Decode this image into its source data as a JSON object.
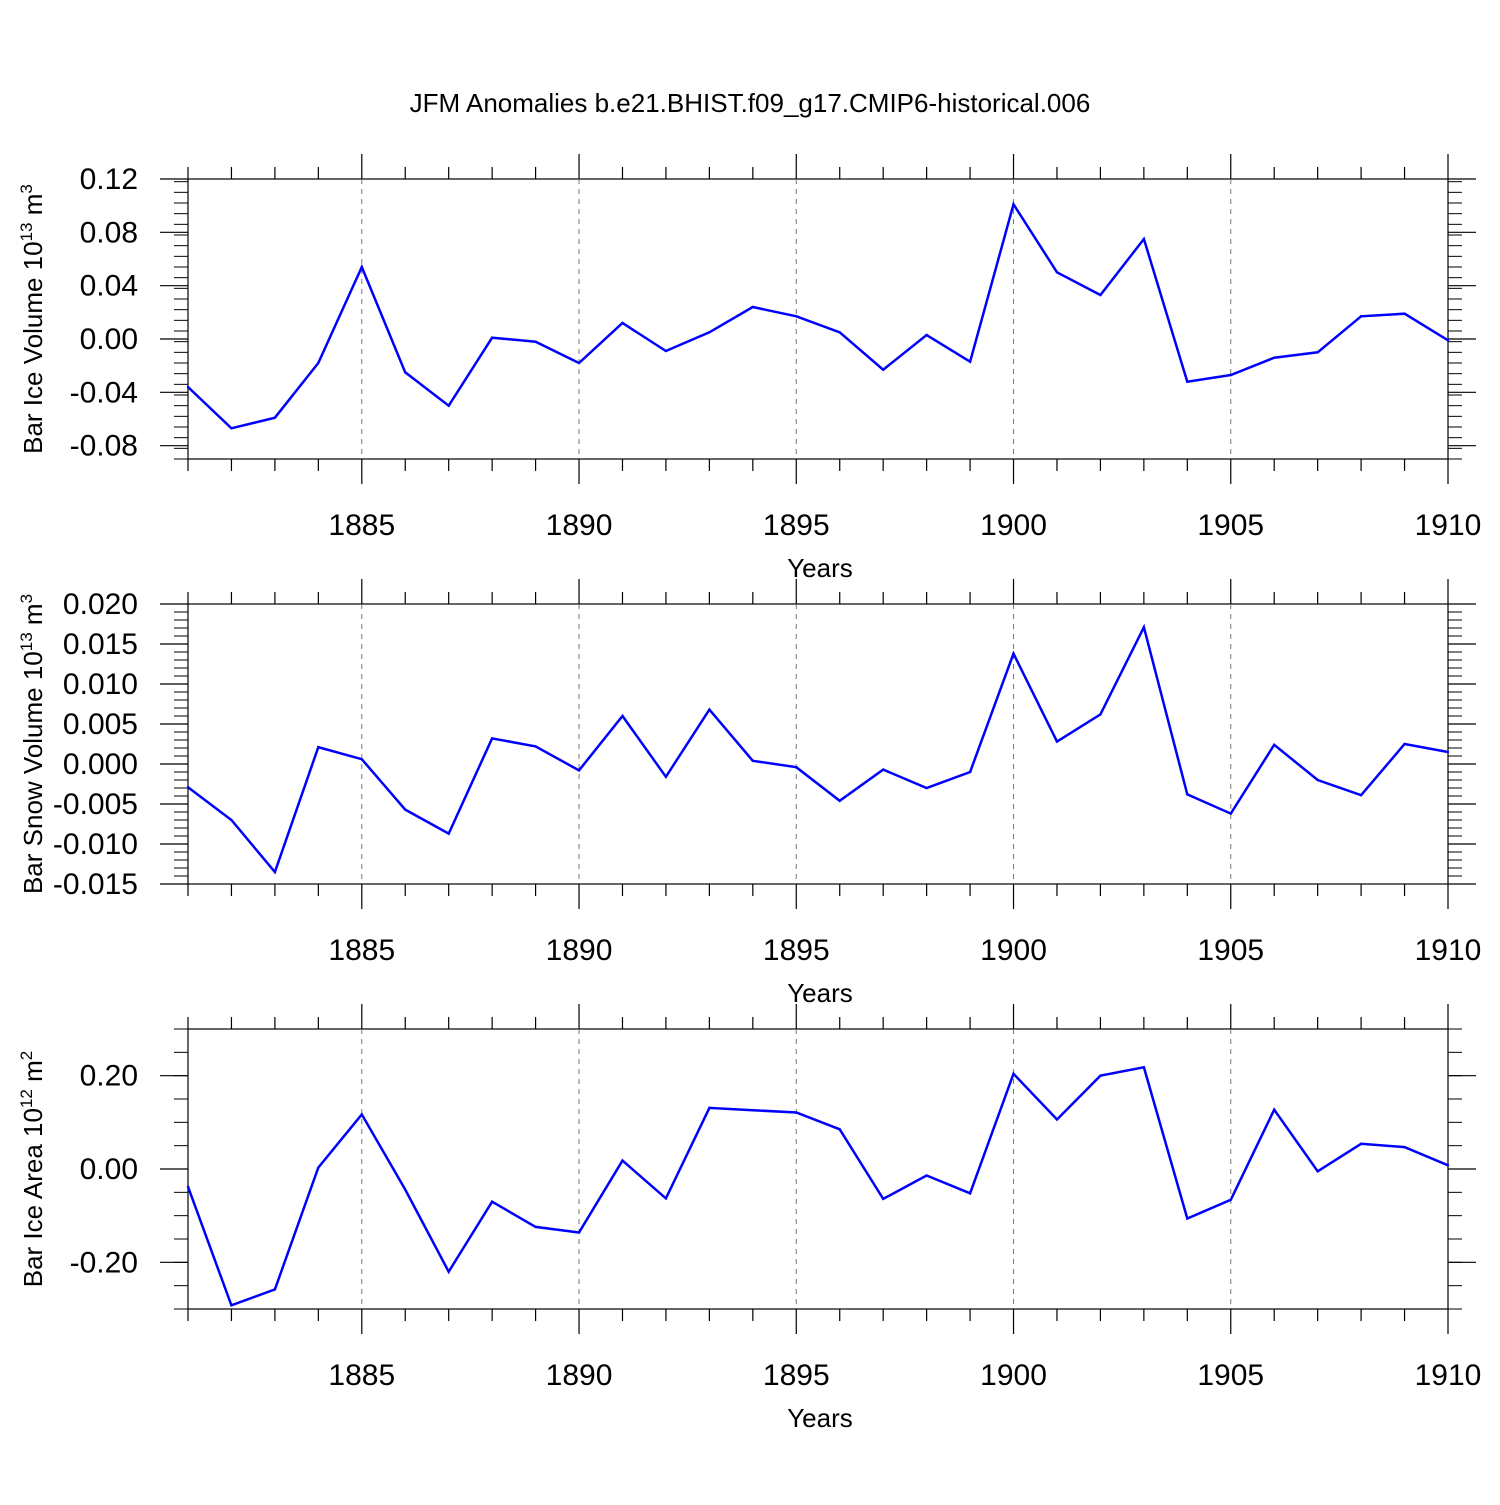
{
  "title": "JFM Anomalies b.e21.BHIST.f09_g17.CMIP6-historical.006",
  "colors": {
    "series": "#0000ff",
    "axis": "#000000",
    "grid": "#777777"
  },
  "chart_data": [
    {
      "type": "line",
      "ylabel_main": "Bar Ice Volume 10",
      "ylabel_exp": "13",
      "ylabel_unit": " m",
      "ylabel_unit_exp": "3",
      "xlabel": "Years",
      "xlim": [
        1881,
        1910
      ],
      "ylim": [
        -0.09,
        0.12
      ],
      "yticks": [
        0.12,
        0.08,
        0.04,
        0.0,
        -0.04,
        -0.08
      ],
      "ytick_labels": [
        "0.12",
        "0.08",
        "0.04",
        "0.00",
        "-0.04",
        "-0.08"
      ],
      "y_minor_step": 0.008,
      "xticks": [
        1885,
        1890,
        1895,
        1900,
        1905,
        1910
      ],
      "xtick_labels": [
        "1885",
        "1890",
        "1895",
        "1900",
        "1905",
        "1910"
      ],
      "x": [
        1881,
        1882,
        1883,
        1884,
        1885,
        1886,
        1887,
        1888,
        1889,
        1890,
        1891,
        1892,
        1893,
        1894,
        1895,
        1896,
        1897,
        1898,
        1899,
        1900,
        1901,
        1902,
        1903,
        1904,
        1905,
        1906,
        1907,
        1908,
        1909,
        1910
      ],
      "values": [
        -0.036,
        -0.067,
        -0.059,
        -0.018,
        0.054,
        -0.025,
        -0.05,
        0.001,
        -0.002,
        -0.018,
        0.012,
        -0.009,
        0.005,
        0.024,
        0.017,
        0.005,
        -0.023,
        0.003,
        -0.017,
        0.101,
        0.05,
        0.033,
        0.075,
        -0.032,
        -0.027,
        -0.014,
        -0.01,
        0.017,
        0.019,
        -0.001
      ]
    },
    {
      "type": "line",
      "ylabel_main": "Bar Snow Volume 10",
      "ylabel_exp": "13",
      "ylabel_unit": " m",
      "ylabel_unit_exp": "3",
      "xlabel": "Years",
      "xlim": [
        1881,
        1910
      ],
      "ylim": [
        -0.015,
        0.02
      ],
      "yticks": [
        0.02,
        0.015,
        0.01,
        0.005,
        0.0,
        -0.005,
        -0.01,
        -0.015
      ],
      "ytick_labels": [
        "0.020",
        "0.015",
        "0.010",
        "0.005",
        "0.000",
        "-0.005",
        "-0.010",
        "-0.015"
      ],
      "y_minor_step": 0.001,
      "xticks": [
        1885,
        1890,
        1895,
        1900,
        1905,
        1910
      ],
      "xtick_labels": [
        "1885",
        "1890",
        "1895",
        "1900",
        "1905",
        "1910"
      ],
      "x": [
        1881,
        1882,
        1883,
        1884,
        1885,
        1886,
        1887,
        1888,
        1889,
        1890,
        1891,
        1892,
        1893,
        1894,
        1895,
        1896,
        1897,
        1898,
        1899,
        1900,
        1901,
        1902,
        1903,
        1904,
        1905,
        1906,
        1907,
        1908,
        1909,
        1910
      ],
      "values": [
        -0.0029,
        -0.007,
        -0.0135,
        0.0021,
        0.0006,
        -0.0057,
        -0.0087,
        0.0032,
        0.0022,
        -0.0008,
        0.006,
        -0.0016,
        0.0068,
        0.0004,
        -0.0004,
        -0.0046,
        -0.0007,
        -0.003,
        -0.001,
        0.0138,
        0.0028,
        0.0062,
        0.0171,
        -0.0038,
        -0.0062,
        0.0024,
        -0.002,
        -0.0039,
        0.0025,
        0.0015
      ]
    },
    {
      "type": "line",
      "ylabel_main": "Bar Ice Area 10",
      "ylabel_exp": "12",
      "ylabel_unit": " m",
      "ylabel_unit_exp": "2",
      "xlabel": "Years",
      "xlim": [
        1881,
        1910
      ],
      "ylim": [
        -0.3,
        0.3
      ],
      "yticks": [
        0.2,
        0.0,
        -0.2
      ],
      "ytick_labels": [
        "0.20",
        "0.00",
        "-0.20"
      ],
      "y_minor_step": 0.05,
      "xticks": [
        1885,
        1890,
        1895,
        1900,
        1905,
        1910
      ],
      "xtick_labels": [
        "1885",
        "1890",
        "1895",
        "1900",
        "1905",
        "1910"
      ],
      "x": [
        1881,
        1882,
        1883,
        1884,
        1885,
        1886,
        1887,
        1888,
        1889,
        1890,
        1891,
        1892,
        1893,
        1894,
        1895,
        1896,
        1897,
        1898,
        1899,
        1900,
        1901,
        1902,
        1903,
        1904,
        1905,
        1906,
        1907,
        1908,
        1909,
        1910
      ],
      "values": [
        -0.038,
        -0.292,
        -0.258,
        0.003,
        0.117,
        -0.044,
        -0.22,
        -0.07,
        -0.124,
        -0.136,
        0.018,
        -0.063,
        0.131,
        0.126,
        0.121,
        0.085,
        -0.064,
        -0.014,
        -0.052,
        0.204,
        0.106,
        0.2,
        0.218,
        -0.106,
        -0.066,
        0.127,
        -0.005,
        0.054,
        0.047,
        0.008
      ]
    }
  ]
}
